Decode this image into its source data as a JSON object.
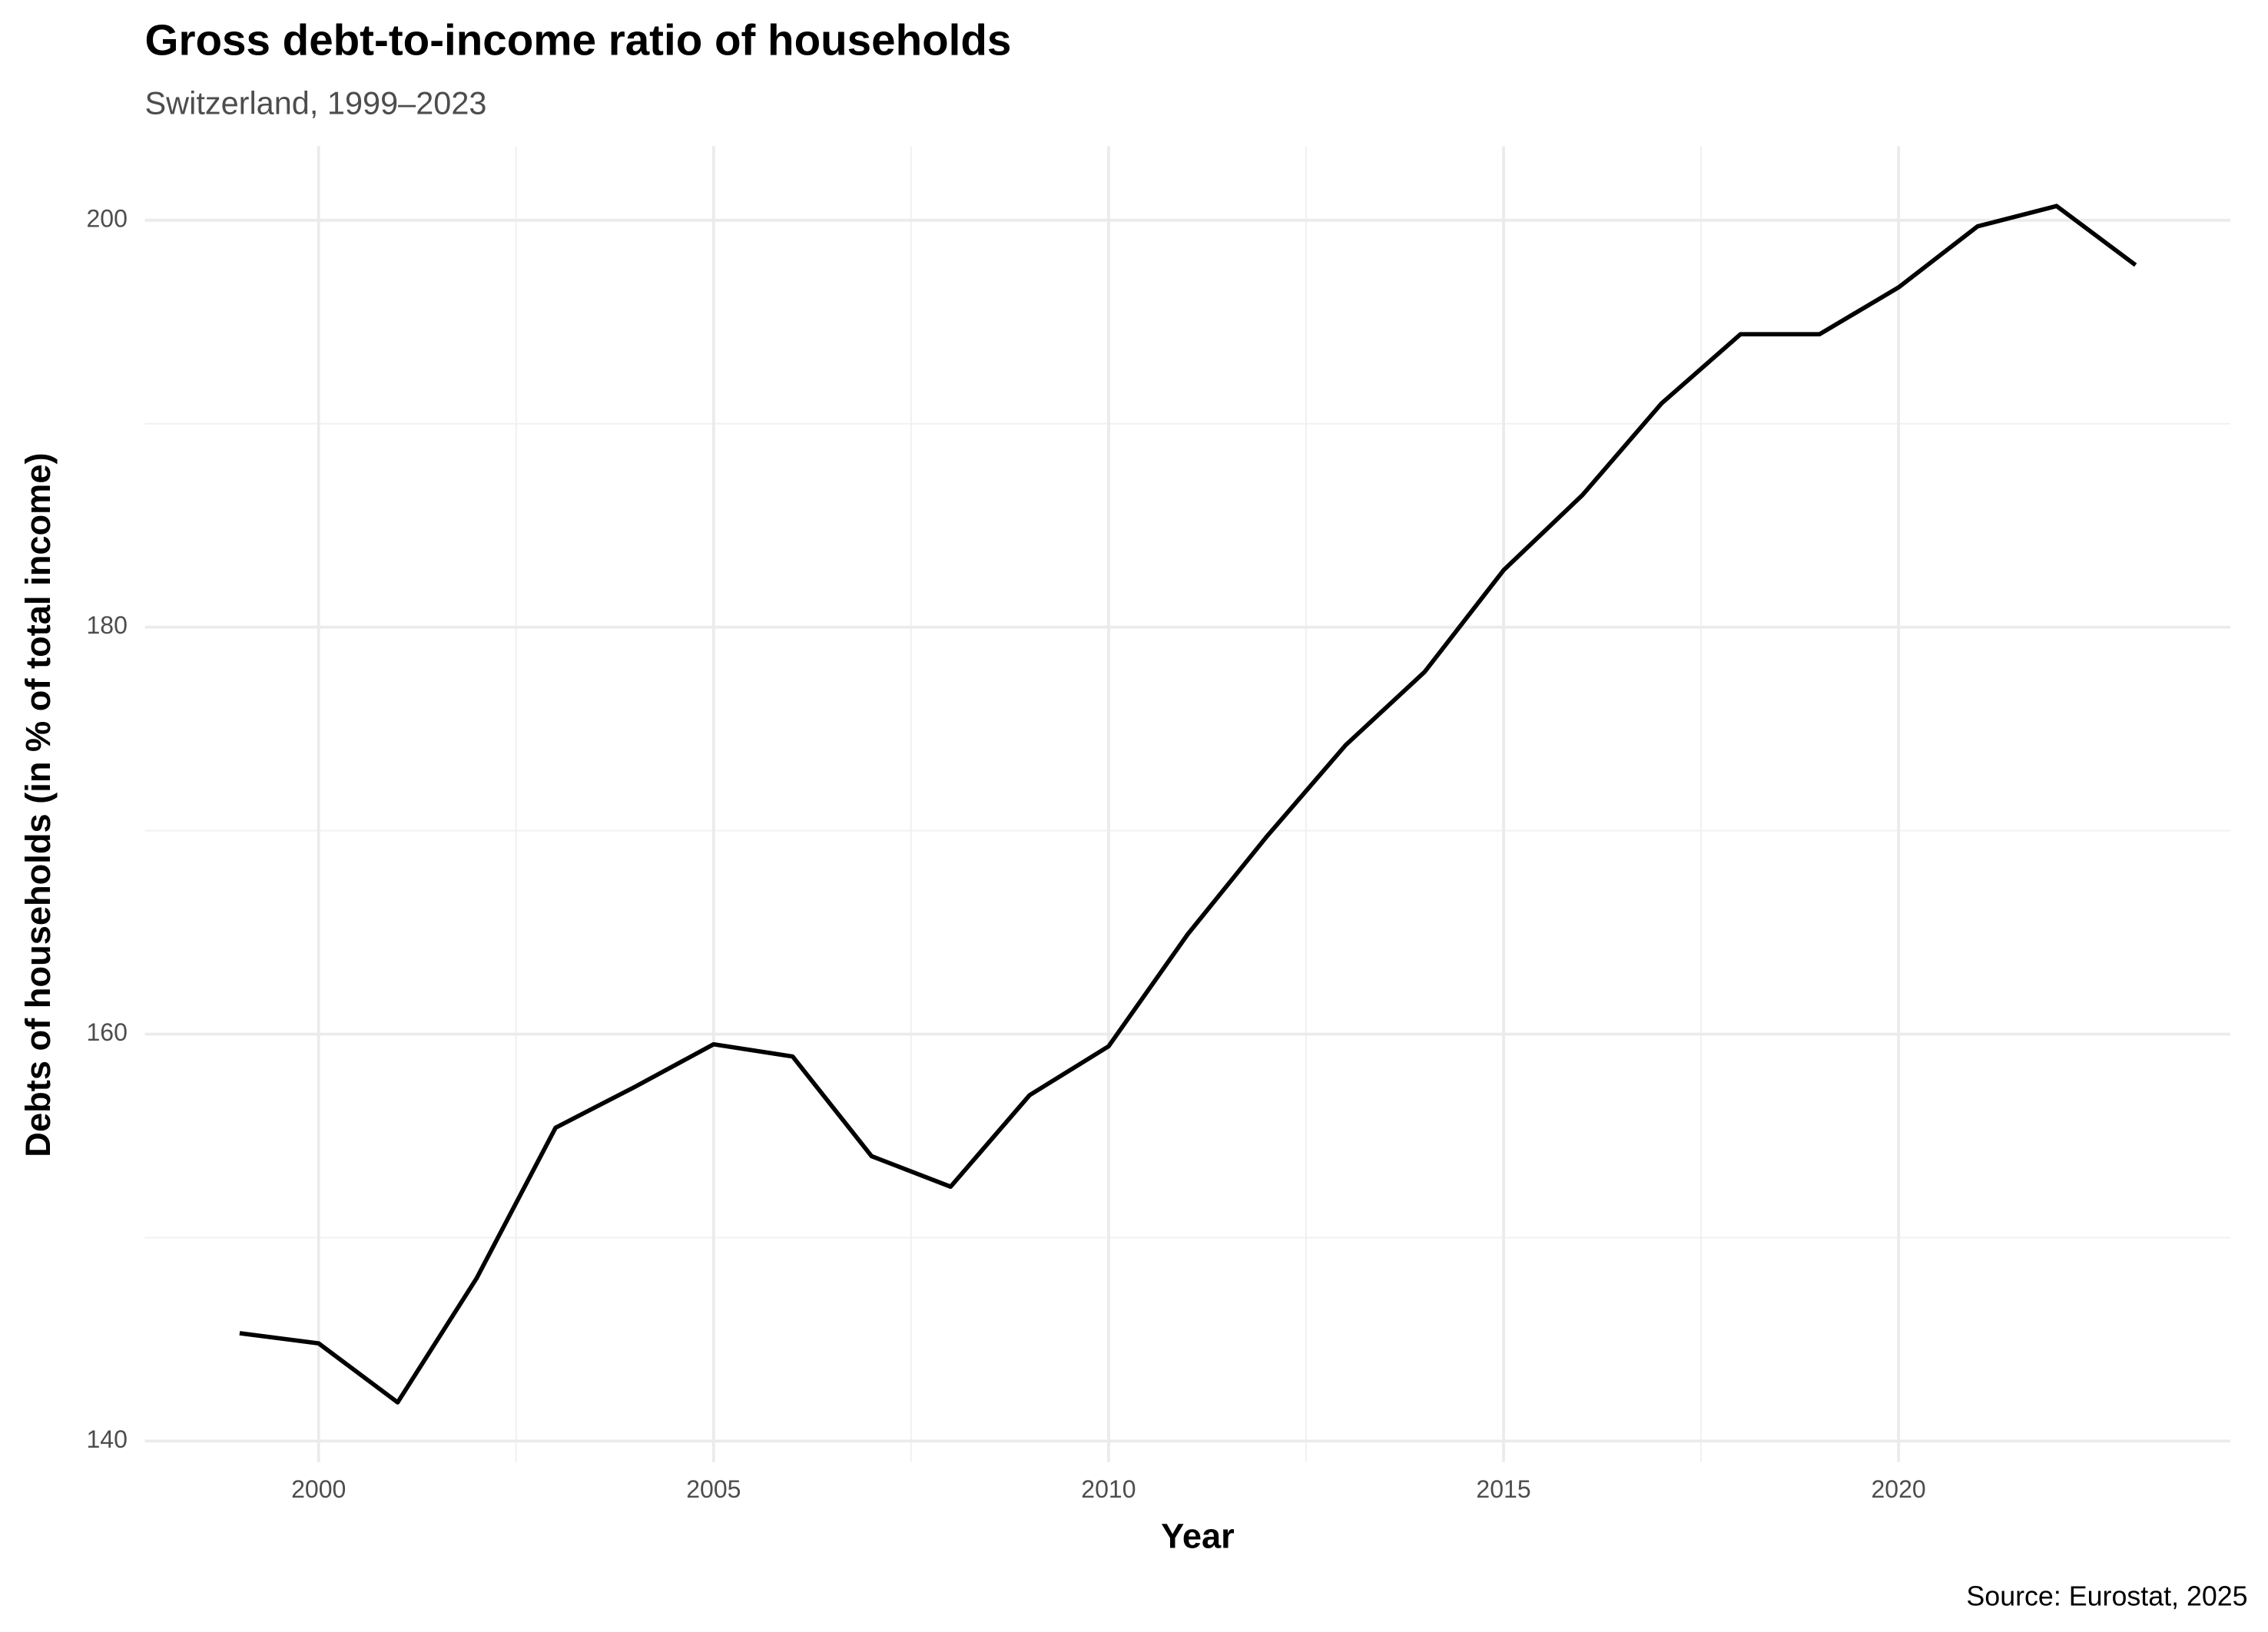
{
  "chart_data": {
    "type": "line",
    "title": "Gross debt-to-income ratio of households",
    "subtitle": "Switzerland, 1999–2023",
    "x_label": "Year",
    "y_label": "Debts of households (in % of total income)",
    "source": "Source: Eurostat, 2025",
    "x": [
      1999,
      2000,
      2001,
      2002,
      2003,
      2004,
      2005,
      2006,
      2007,
      2008,
      2009,
      2010,
      2011,
      2012,
      2013,
      2014,
      2015,
      2016,
      2017,
      2018,
      2019,
      2020,
      2021,
      2022,
      2023
    ],
    "series": [
      {
        "name": "Switzerland",
        "color": "#000000",
        "values": [
          145.3,
          144.8,
          141.9,
          148.0,
          155.4,
          157.4,
          159.5,
          158.9,
          154.0,
          152.5,
          157.0,
          159.4,
          164.9,
          169.7,
          174.2,
          177.8,
          182.8,
          186.5,
          191.0,
          194.4,
          194.4,
          196.7,
          199.7,
          200.7,
          197.8
        ]
      }
    ],
    "xlim": [
      1997.8,
      2024.2
    ],
    "xticks": [
      2000,
      2005,
      2010,
      2015,
      2020
    ],
    "ylim": [
      138.96,
      203.64
    ],
    "yticks": [
      140,
      160,
      180,
      200
    ],
    "grid": true
  }
}
